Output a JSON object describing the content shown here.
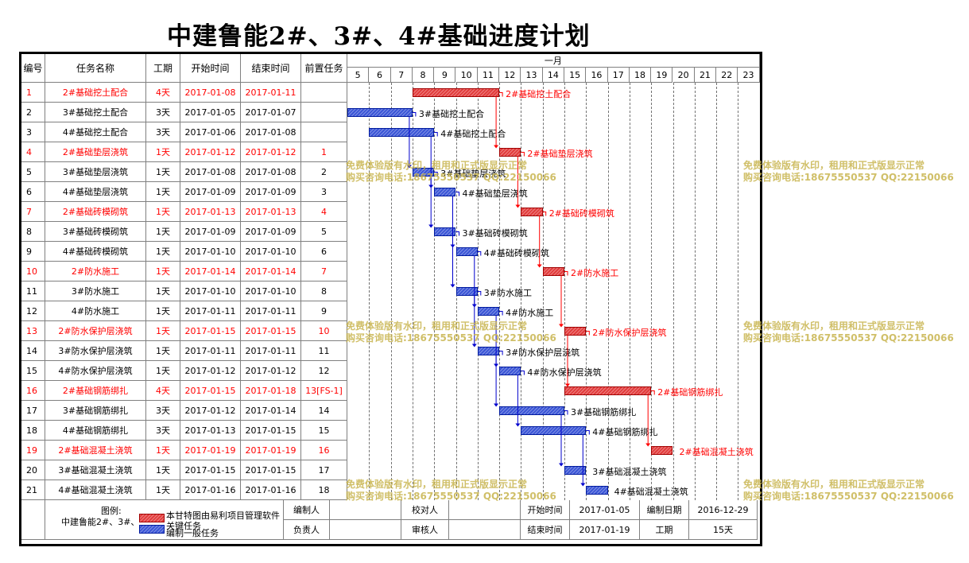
{
  "title": "中建鲁能2#、3#、4#基础进度计划",
  "headers": {
    "id": "编号",
    "name": "任务名称",
    "dur": "工期",
    "start": "开始时间",
    "end": "结束时间",
    "pred": "前置任务"
  },
  "month": "一月",
  "days": [
    "5",
    "6",
    "7",
    "8",
    "9",
    "10",
    "11",
    "12",
    "13",
    "14",
    "15",
    "16",
    "17",
    "18",
    "19",
    "20",
    "21",
    "22",
    "23"
  ],
  "tasks": [
    {
      "id": "1",
      "name": "2#基础挖土配合",
      "dur": "4天",
      "start": "2017-01-08",
      "end": "2017-01-11",
      "pred": "",
      "crit": true,
      "s": 8,
      "e": 11
    },
    {
      "id": "2",
      "name": "3#基础挖土配合",
      "dur": "3天",
      "start": "2017-01-05",
      "end": "2017-01-07",
      "pred": "",
      "crit": false,
      "s": 5,
      "e": 7
    },
    {
      "id": "3",
      "name": "4#基础挖土配合",
      "dur": "3天",
      "start": "2017-01-06",
      "end": "2017-01-08",
      "pred": "",
      "crit": false,
      "s": 6,
      "e": 8
    },
    {
      "id": "4",
      "name": "2#基础垫层浇筑",
      "dur": "1天",
      "start": "2017-01-12",
      "end": "2017-01-12",
      "pred": "1",
      "crit": true,
      "s": 12,
      "e": 12
    },
    {
      "id": "5",
      "name": "3#基础垫层浇筑",
      "dur": "1天",
      "start": "2017-01-08",
      "end": "2017-01-08",
      "pred": "2",
      "crit": false,
      "s": 8,
      "e": 8
    },
    {
      "id": "6",
      "name": "4#基础垫层浇筑",
      "dur": "1天",
      "start": "2017-01-09",
      "end": "2017-01-09",
      "pred": "3",
      "crit": false,
      "s": 9,
      "e": 9
    },
    {
      "id": "7",
      "name": "2#基础砖模砌筑",
      "dur": "1天",
      "start": "2017-01-13",
      "end": "2017-01-13",
      "pred": "4",
      "crit": true,
      "s": 13,
      "e": 13
    },
    {
      "id": "8",
      "name": "3#基础砖模砌筑",
      "dur": "1天",
      "start": "2017-01-09",
      "end": "2017-01-09",
      "pred": "5",
      "crit": false,
      "s": 9,
      "e": 9
    },
    {
      "id": "9",
      "name": "4#基础砖模砌筑",
      "dur": "1天",
      "start": "2017-01-10",
      "end": "2017-01-10",
      "pred": "6",
      "crit": false,
      "s": 10,
      "e": 10
    },
    {
      "id": "10",
      "name": "2#防水施工",
      "dur": "1天",
      "start": "2017-01-14",
      "end": "2017-01-14",
      "pred": "7",
      "crit": true,
      "s": 14,
      "e": 14
    },
    {
      "id": "11",
      "name": "3#防水施工",
      "dur": "1天",
      "start": "2017-01-10",
      "end": "2017-01-10",
      "pred": "8",
      "crit": false,
      "s": 10,
      "e": 10
    },
    {
      "id": "12",
      "name": "4#防水施工",
      "dur": "1天",
      "start": "2017-01-11",
      "end": "2017-01-11",
      "pred": "9",
      "crit": false,
      "s": 11,
      "e": 11
    },
    {
      "id": "13",
      "name": "2#防水保护层浇筑",
      "dur": "1天",
      "start": "2017-01-15",
      "end": "2017-01-15",
      "pred": "10",
      "crit": true,
      "s": 15,
      "e": 15
    },
    {
      "id": "14",
      "name": "3#防水保护层浇筑",
      "dur": "1天",
      "start": "2017-01-11",
      "end": "2017-01-11",
      "pred": "11",
      "crit": false,
      "s": 11,
      "e": 11
    },
    {
      "id": "15",
      "name": "4#防水保护层浇筑",
      "dur": "1天",
      "start": "2017-01-12",
      "end": "2017-01-12",
      "pred": "12",
      "crit": false,
      "s": 12,
      "e": 12
    },
    {
      "id": "16",
      "name": "2#基础钢筋绑扎",
      "dur": "4天",
      "start": "2017-01-15",
      "end": "2017-01-18",
      "pred": "13[FS-1]",
      "crit": true,
      "s": 15,
      "e": 18
    },
    {
      "id": "17",
      "name": "3#基础钢筋绑扎",
      "dur": "3天",
      "start": "2017-01-12",
      "end": "2017-01-14",
      "pred": "14",
      "crit": false,
      "s": 12,
      "e": 14
    },
    {
      "id": "18",
      "name": "4#基础钢筋绑扎",
      "dur": "3天",
      "start": "2017-01-13",
      "end": "2017-01-15",
      "pred": "15",
      "crit": false,
      "s": 13,
      "e": 15
    },
    {
      "id": "19",
      "name": "2#基础混凝土浇筑",
      "dur": "1天",
      "start": "2017-01-19",
      "end": "2017-01-19",
      "pred": "16",
      "crit": true,
      "s": 19,
      "e": 19
    },
    {
      "id": "20",
      "name": "3#基础混凝土浇筑",
      "dur": "1天",
      "start": "2017-01-15",
      "end": "2017-01-15",
      "pred": "17",
      "crit": false,
      "s": 15,
      "e": 15
    },
    {
      "id": "21",
      "name": "4#基础混凝土浇筑",
      "dur": "1天",
      "start": "2017-01-16",
      "end": "2017-01-16",
      "pred": "18",
      "crit": false,
      "s": 16,
      "e": 16
    }
  ],
  "watermark": {
    "line1": "免费体验版有水印，租用和正式版显示正常",
    "line2": "购买咨询电话:18675550537 QQ:22150066"
  },
  "footer": {
    "legend_title": "图例:",
    "legend_project": "中建鲁能2#、3#、",
    "legend_software": "本甘特图由易利项目管理软件",
    "legend_crit": "关键任务",
    "legend_norm": "编制一般任务",
    "compiler": "编制人",
    "checker": "校对人",
    "owner": "负责人",
    "reviewer": "审核人",
    "start_label": "开始时间",
    "start_value": "2017-01-05",
    "end_label": "结束时间",
    "end_value": "2017-01-19",
    "date_label": "编制日期",
    "date_value": "2016-12-29",
    "dur_label": "工期",
    "dur_value": "15天"
  },
  "colors": {
    "critical": "#e23c3c",
    "normal": "#3a55d6",
    "critical_text": "#ff0000",
    "watermark": "#c8b44e"
  }
}
